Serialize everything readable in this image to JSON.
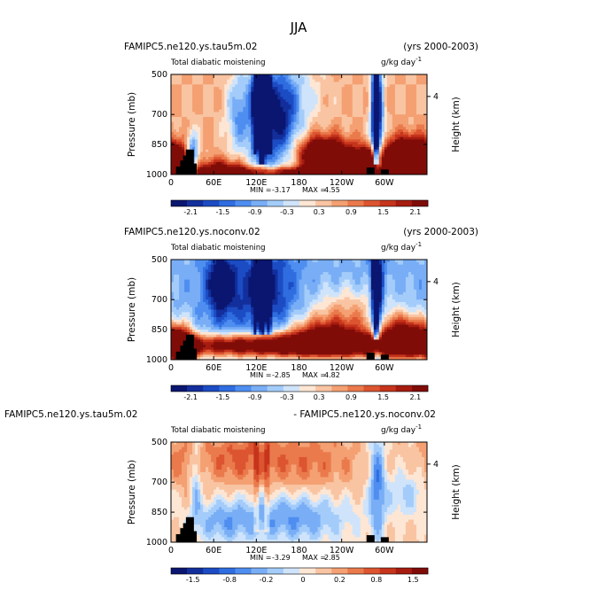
{
  "figure_title": "JJA",
  "chart_data": [
    {
      "type": "heatmap",
      "left_title": "FAMIPC5.ne120.ys.tau5m.02",
      "right_title": "(yrs 2000-2003)",
      "subtitle": "Total diabatic moistening",
      "units": "g/kg day",
      "units_exp": "-1",
      "ylabel": "Pressure (mb)",
      "ylabel_right": "Height (km)",
      "y_ticks": [
        "500",
        "700",
        "850",
        "1000"
      ],
      "y_tick_values": [
        500,
        700,
        850,
        1000
      ],
      "right_ticks": [
        "4"
      ],
      "x_ticks": [
        "0",
        "60E",
        "120E",
        "180",
        "120W",
        "60W"
      ],
      "x_tick_values": [
        0,
        60,
        120,
        180,
        240,
        300
      ],
      "xlim": [
        0,
        360
      ],
      "ylim": [
        1000,
        500
      ],
      "min_label": "MIN =",
      "min": "-3.17",
      "max_label": "MAX =",
      "max": "4.55",
      "colorbar_labels": [
        "-2.1",
        "-1.5",
        "-0.9",
        "-0.3",
        "0.3",
        "0.9",
        "1.5",
        "2.1"
      ],
      "colorbar_colors": [
        "#0a1670",
        "#132f9c",
        "#1c4cc4",
        "#2f6de0",
        "#4f8ef0",
        "#79aef6",
        "#a4ccfa",
        "#cfe4fb",
        "#fde6d4",
        "#f9c4a2",
        "#f4a072",
        "#ea7a4c",
        "#dc5530",
        "#c6341c",
        "#a61c10",
        "#800c08"
      ],
      "features": {
        "base": 0.6,
        "blobs": [
          {
            "x": 10,
            "p": 960,
            "sx": 12,
            "sp": 60,
            "a": 3.5
          },
          {
            "x": 30,
            "p": 920,
            "sx": 6,
            "sp": 80,
            "a": -2.5
          },
          {
            "x": 70,
            "p": 980,
            "sx": 25,
            "sp": 40,
            "a": 2.0
          },
          {
            "x": 95,
            "p": 700,
            "sx": 12,
            "sp": 150,
            "a": -1.5
          },
          {
            "x": 125,
            "p": 650,
            "sx": 10,
            "sp": 200,
            "a": -2.5
          },
          {
            "x": 150,
            "p": 720,
            "sx": 20,
            "sp": 180,
            "a": -2.8
          },
          {
            "x": 180,
            "p": 600,
            "sx": 25,
            "sp": 120,
            "a": -0.6
          },
          {
            "x": 215,
            "p": 900,
            "sx": 25,
            "sp": 60,
            "a": 3.5
          },
          {
            "x": 275,
            "p": 930,
            "sx": 18,
            "sp": 45,
            "a": 3.2
          },
          {
            "x": 290,
            "p": 700,
            "sx": 6,
            "sp": 200,
            "a": -3.0
          },
          {
            "x": 335,
            "p": 900,
            "sx": 22,
            "sp": 60,
            "a": 3.8
          },
          {
            "x": 200,
            "p": 990,
            "sx": 120,
            "sp": 20,
            "a": 2.5
          }
        ],
        "streaks": [
          {
            "x": 118,
            "w": 2,
            "a": -2.0,
            "pmax": 900
          },
          {
            "x": 128,
            "w": 3,
            "a": -2.5,
            "pmax": 950
          },
          {
            "x": 138,
            "w": 2,
            "a": -2.0,
            "pmax": 900
          },
          {
            "x": 288,
            "w": 3,
            "a": -2.5,
            "pmax": 950
          }
        ]
      }
    },
    {
      "type": "heatmap",
      "left_title": "FAMIPC5.ne120.ys.noconv.02",
      "right_title": "(yrs 2000-2003)",
      "subtitle": "Total diabatic moistening",
      "units": "g/kg day",
      "units_exp": "-1",
      "ylabel": "Pressure (mb)",
      "ylabel_right": "Height (km)",
      "y_ticks": [
        "500",
        "700",
        "850",
        "1000"
      ],
      "y_tick_values": [
        500,
        700,
        850,
        1000
      ],
      "right_ticks": [
        "4"
      ],
      "x_ticks": [
        "0",
        "60E",
        "120E",
        "180",
        "120W",
        "60W"
      ],
      "x_tick_values": [
        0,
        60,
        120,
        180,
        240,
        300
      ],
      "xlim": [
        0,
        360
      ],
      "ylim": [
        1000,
        500
      ],
      "min_label": "MIN =",
      "min": "-2.85",
      "max_label": "MAX =",
      "max": "4.82",
      "colorbar_labels": [
        "-2.1",
        "-1.5",
        "-0.9",
        "-0.3",
        "0.3",
        "0.9",
        "1.5",
        "2.1"
      ],
      "colorbar_colors": [
        "#0a1670",
        "#132f9c",
        "#1c4cc4",
        "#2f6de0",
        "#4f8ef0",
        "#79aef6",
        "#a4ccfa",
        "#cfe4fb",
        "#fde6d4",
        "#f9c4a2",
        "#f4a072",
        "#ea7a4c",
        "#dc5530",
        "#c6341c",
        "#a61c10",
        "#800c08"
      ],
      "features": {
        "base": -0.7,
        "blobs": [
          {
            "x": 15,
            "p": 940,
            "sx": 12,
            "sp": 70,
            "a": 3.5
          },
          {
            "x": 190,
            "p": 930,
            "sx": 160,
            "sp": 40,
            "a": 4.2
          },
          {
            "x": 220,
            "p": 870,
            "sx": 40,
            "sp": 60,
            "a": 2.5
          },
          {
            "x": 330,
            "p": 880,
            "sx": 25,
            "sp": 70,
            "a": 3.5
          },
          {
            "x": 70,
            "p": 620,
            "sx": 15,
            "sp": 120,
            "a": -2.0
          },
          {
            "x": 130,
            "p": 650,
            "sx": 30,
            "sp": 150,
            "a": -1.6
          },
          {
            "x": 290,
            "p": 680,
            "sx": 6,
            "sp": 180,
            "a": -2.5
          },
          {
            "x": 250,
            "p": 750,
            "sx": 40,
            "sp": 80,
            "a": 1.2
          }
        ],
        "streaks": [
          {
            "x": 118,
            "w": 2,
            "a": -2.0,
            "pmax": 880
          },
          {
            "x": 128,
            "w": 3,
            "a": -2.2,
            "pmax": 880
          },
          {
            "x": 138,
            "w": 2,
            "a": -2.0,
            "pmax": 880
          },
          {
            "x": 288,
            "w": 3,
            "a": -2.2,
            "pmax": 900
          }
        ]
      }
    },
    {
      "type": "heatmap",
      "left_title": "FAMIPC5.ne120.ys.tau5m.02",
      "right_title": "- FAMIPC5.ne120.ys.noconv.02",
      "subtitle": "Total diabatic moistening",
      "units": "g/kg day",
      "units_exp": "-1",
      "ylabel": "Pressure (mb)",
      "ylabel_right": "Height (km)",
      "y_ticks": [
        "500",
        "700",
        "850",
        "1000"
      ],
      "y_tick_values": [
        500,
        700,
        850,
        1000
      ],
      "right_ticks": [
        "4"
      ],
      "x_ticks": [
        "0",
        "60E",
        "120E",
        "180",
        "120W",
        "60W"
      ],
      "x_tick_values": [
        0,
        60,
        120,
        180,
        240,
        300
      ],
      "xlim": [
        0,
        360
      ],
      "ylim": [
        1000,
        500
      ],
      "min_label": "MIN =",
      "min": "-3.29",
      "max_label": "MAX =",
      "max": "2.85",
      "colorbar_labels": [
        "-1.5",
        "-0.8",
        "-0.2",
        "0",
        "0.2",
        "0.8",
        "1.5"
      ],
      "colorbar_colors": [
        "#0a1670",
        "#132f9c",
        "#1c4cc4",
        "#2f6de0",
        "#4f8ef0",
        "#79aef6",
        "#a4ccfa",
        "#cfe4fb",
        "#fde6d4",
        "#f9c4a2",
        "#f4a072",
        "#ea7a4c",
        "#dc5530",
        "#c6341c",
        "#a61c10",
        "#800c08"
      ],
      "features": {
        "base": 0.4,
        "blobs": [
          {
            "x": 90,
            "p": 580,
            "sx": 40,
            "sp": 90,
            "a": 0.8
          },
          {
            "x": 190,
            "p": 600,
            "sx": 50,
            "sp": 100,
            "a": 0.7
          },
          {
            "x": 70,
            "p": 900,
            "sx": 30,
            "sp": 80,
            "a": -0.9
          },
          {
            "x": 170,
            "p": 880,
            "sx": 60,
            "sp": 90,
            "a": -1.3
          },
          {
            "x": 290,
            "p": 700,
            "sx": 8,
            "sp": 200,
            "a": -1.5
          },
          {
            "x": 330,
            "p": 760,
            "sx": 20,
            "sp": 80,
            "a": -0.8
          },
          {
            "x": 10,
            "p": 600,
            "sx": 15,
            "sp": 100,
            "a": 0.5
          },
          {
            "x": 35,
            "p": 700,
            "sx": 5,
            "sp": 150,
            "a": -0.9
          }
        ],
        "streaks": [
          {
            "x": 120,
            "w": 2,
            "a": 0.7,
            "pmax": 950
          },
          {
            "x": 135,
            "w": 2,
            "a": 0.7,
            "pmax": 950
          }
        ]
      }
    }
  ]
}
